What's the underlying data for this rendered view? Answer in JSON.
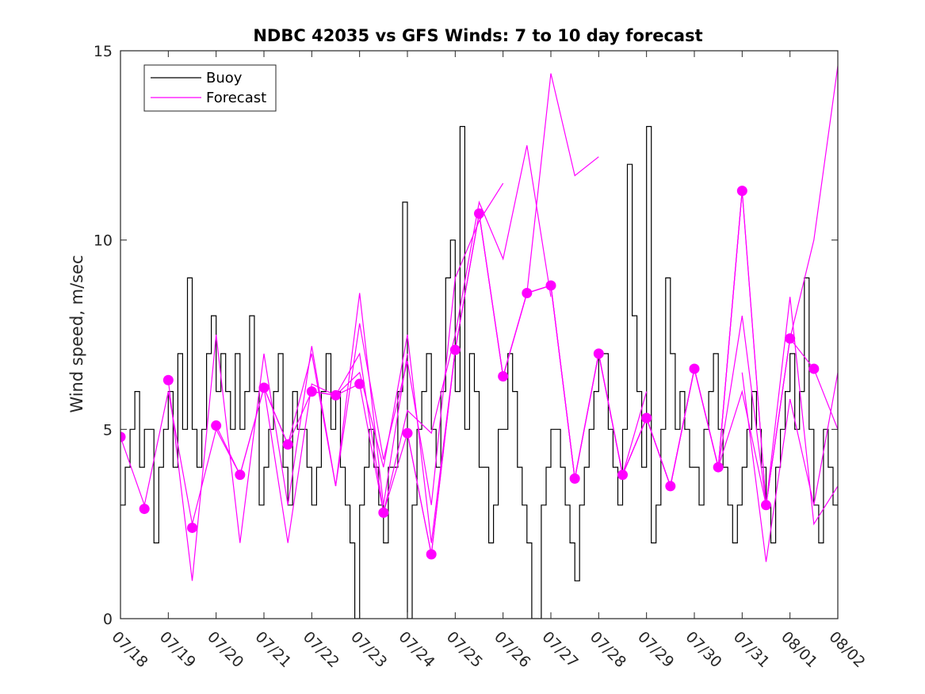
{
  "chart_data": {
    "type": "line",
    "title": "NDBC 42035 vs GFS Winds: 7 to 10 day forecast",
    "xlabel": "",
    "ylabel": "Wind speed, m/sec",
    "ylim": [
      0,
      15
    ],
    "xlim": [
      "07/18",
      "08/02"
    ],
    "yticks": [
      "0",
      "5",
      "10",
      "15"
    ],
    "xticks": [
      "07/18",
      "07/19",
      "07/20",
      "07/21",
      "07/22",
      "07/23",
      "07/24",
      "07/25",
      "07/26",
      "07/27",
      "07/28",
      "07/29",
      "07/30",
      "07/31",
      "08/01",
      "08/02"
    ],
    "legend": {
      "position": "top-left",
      "entries": [
        "Buoy",
        "Forecast"
      ]
    },
    "grid": false,
    "colors": {
      "buoy": "#000000",
      "forecast": "#ff00ff"
    },
    "series": [
      {
        "name": "Buoy",
        "style": "stairs",
        "x": [
          0.0,
          0.1,
          0.2,
          0.3,
          0.4,
          0.5,
          0.6,
          0.7,
          0.8,
          0.9,
          1.0,
          1.1,
          1.2,
          1.3,
          1.4,
          1.5,
          1.6,
          1.7,
          1.8,
          1.9,
          2.0,
          2.1,
          2.2,
          2.3,
          2.4,
          2.5,
          2.6,
          2.7,
          2.8,
          2.9,
          3.0,
          3.1,
          3.2,
          3.3,
          3.4,
          3.5,
          3.6,
          3.7,
          3.8,
          3.9,
          4.0,
          4.1,
          4.2,
          4.3,
          4.4,
          4.5,
          4.6,
          4.7,
          4.8,
          4.9,
          5.0,
          5.1,
          5.2,
          5.3,
          5.4,
          5.5,
          5.6,
          5.7,
          5.8,
          5.9,
          6.0,
          6.1,
          6.2,
          6.3,
          6.4,
          6.5,
          6.6,
          6.7,
          6.8,
          6.9,
          7.0,
          7.1,
          7.2,
          7.3,
          7.4,
          7.5,
          7.6,
          7.7,
          7.8,
          7.9,
          8.0,
          8.1,
          8.2,
          8.3,
          8.4,
          8.5,
          8.6,
          8.7,
          8.8,
          8.9,
          9.0,
          9.1,
          9.2,
          9.3,
          9.4,
          9.5,
          9.6,
          9.7,
          9.8,
          9.9,
          10.0,
          10.1,
          10.2,
          10.3,
          10.4,
          10.5,
          10.6,
          10.7,
          10.8,
          10.9,
          11.0,
          11.1,
          11.2,
          11.3,
          11.4,
          11.5,
          11.6,
          11.7,
          11.8,
          11.9,
          12.0,
          12.1,
          12.2,
          12.3,
          12.4,
          12.5,
          12.6,
          12.7,
          12.8,
          12.9,
          13.0,
          13.1,
          13.2,
          13.3,
          13.4,
          13.5,
          13.6,
          13.7,
          13.8,
          13.9,
          14.0,
          14.1,
          14.2,
          14.3,
          14.4,
          14.5,
          14.6,
          14.7,
          14.8,
          14.9,
          15.0
        ],
        "values": [
          3,
          4,
          5,
          6,
          4,
          5,
          5,
          2,
          4,
          5,
          6,
          4,
          7,
          5,
          9,
          5,
          4,
          5,
          7,
          8,
          6,
          7,
          6,
          5,
          7,
          5,
          6,
          8,
          6,
          3,
          4,
          5,
          6,
          7,
          4,
          3,
          6,
          5,
          5,
          4,
          3,
          4,
          6,
          7,
          5,
          6,
          4,
          3,
          2,
          0,
          3,
          4,
          5,
          4,
          3,
          2,
          4,
          4,
          6,
          11,
          0,
          3,
          5,
          6,
          7,
          5,
          4,
          6,
          9,
          10,
          6,
          13,
          5,
          7,
          6,
          4,
          4,
          2,
          3,
          5,
          5,
          7,
          6,
          4,
          3,
          2,
          0,
          0,
          3,
          4,
          5,
          5,
          4,
          3,
          2,
          1,
          3,
          4,
          5,
          6,
          7,
          7,
          5,
          4,
          3,
          5,
          12,
          8,
          6,
          4,
          13,
          2,
          3,
          5,
          9,
          7,
          5,
          6,
          5,
          4,
          4,
          3,
          5,
          6,
          7,
          5,
          4,
          3,
          2,
          3,
          4,
          5,
          6,
          5,
          4,
          3,
          2,
          4,
          5,
          6,
          7,
          5,
          6,
          9,
          5,
          3,
          2,
          5,
          4,
          3,
          3
        ]
      },
      {
        "name": "Forecast",
        "style": "multi-line",
        "runs": [
          {
            "x": [
              0.0,
              0.5,
              1.0,
              1.5,
              2.0,
              2.5,
              3.0,
              3.5,
              4.0,
              4.5,
              5.0
            ],
            "values": [
              4.8,
              3.0,
              6.0,
              2.5,
              5.0,
              3.8,
              6.1,
              4.6,
              6.0,
              5.9,
              6.2
            ]
          },
          {
            "x": [
              1.0,
              1.5,
              2.0,
              2.5,
              3.0,
              3.5,
              4.0,
              4.5,
              5.0,
              5.5,
              6.0
            ],
            "values": [
              6.3,
              1.0,
              7.5,
              2.0,
              7.0,
              3.0,
              7.2,
              3.5,
              8.6,
              3.0,
              7.0
            ]
          },
          {
            "x": [
              2.0,
              2.5,
              3.0,
              3.5,
              4.0,
              4.5,
              5.0,
              5.5,
              6.0,
              6.5,
              7.0
            ],
            "values": [
              5.1,
              3.8,
              6.1,
              2.0,
              6.2,
              5.9,
              6.5,
              4.0,
              7.5,
              2.0,
              7.1
            ]
          },
          {
            "x": [
              3.0,
              3.5,
              4.0,
              4.5,
              5.0,
              5.5,
              6.0,
              6.5,
              7.0,
              7.5,
              8.0
            ],
            "values": [
              6.1,
              4.6,
              7.0,
              3.5,
              7.8,
              4.2,
              6.8,
              3.0,
              9.0,
              10.5,
              11.5
            ]
          },
          {
            "x": [
              4.0,
              4.5,
              5.0,
              5.5,
              6.0,
              6.5,
              7.0,
              7.5,
              8.0,
              8.5,
              9.0
            ],
            "values": [
              6.0,
              5.9,
              7.0,
              2.8,
              5.5,
              4.9,
              7.5,
              11.0,
              9.5,
              12.5,
              8.5
            ]
          },
          {
            "x": [
              5.0,
              5.5,
              6.0,
              6.5,
              7.0,
              7.5,
              8.0,
              8.5,
              9.0,
              9.5,
              10.0
            ],
            "values": [
              6.2,
              2.8,
              4.9,
              1.7,
              7.1,
              10.7,
              6.4,
              8.6,
              14.4,
              11.7,
              12.2
            ]
          },
          {
            "x": [
              6.0,
              6.5,
              7.0,
              7.5,
              8.0,
              8.5,
              9.0,
              9.5,
              10.0,
              10.5,
              11.0
            ],
            "values": [
              4.9,
              1.7,
              7.1,
              10.7,
              6.4,
              8.6,
              8.8,
              3.7,
              7.0,
              3.8,
              6.0
            ]
          },
          {
            "x": [
              7.0,
              7.5,
              8.0,
              8.5,
              9.0,
              9.5,
              10.0,
              10.5,
              11.0,
              11.5,
              12.0
            ],
            "values": [
              7.1,
              10.7,
              6.4,
              8.6,
              8.8,
              3.7,
              7.0,
              3.8,
              5.3,
              3.5,
              6.6
            ]
          },
          {
            "x": [
              8.0,
              8.5,
              9.0,
              9.5,
              10.0,
              10.5,
              11.0,
              11.5,
              12.0,
              12.5,
              13.0
            ],
            "values": [
              6.4,
              8.6,
              8.8,
              3.7,
              7.0,
              3.8,
              5.3,
              3.5,
              6.6,
              4.0,
              11.3
            ]
          },
          {
            "x": [
              9.0,
              9.5,
              10.0,
              10.5,
              11.0,
              11.5,
              12.0,
              12.5,
              13.0,
              13.5,
              14.0
            ],
            "values": [
              8.8,
              3.7,
              7.0,
              3.8,
              5.3,
              3.5,
              6.6,
              4.0,
              11.3,
              3.0,
              7.4
            ]
          },
          {
            "x": [
              10.0,
              10.5,
              11.0,
              11.5,
              12.0,
              12.5,
              13.0,
              13.5,
              14.0,
              14.5,
              15.0
            ],
            "values": [
              7.0,
              3.8,
              5.3,
              3.5,
              6.6,
              4.0,
              11.3,
              3.0,
              7.4,
              10.0,
              14.6
            ]
          },
          {
            "x": [
              11.0,
              11.5,
              12.0,
              12.5,
              13.0,
              13.5,
              14.0,
              14.5,
              15.0
            ],
            "values": [
              5.3,
              3.5,
              6.6,
              4.0,
              8.0,
              3.0,
              7.4,
              6.6,
              5.0
            ]
          },
          {
            "x": [
              12.0,
              12.5,
              13.0,
              13.5,
              14.0,
              14.5,
              15.0
            ],
            "values": [
              6.6,
              4.0,
              6.0,
              3.0,
              8.5,
              2.5,
              3.5
            ]
          },
          {
            "x": [
              13.0,
              13.5,
              14.0,
              14.5,
              15.0
            ],
            "values": [
              6.5,
              1.5,
              5.8,
              3.0,
              6.5
            ]
          }
        ],
        "markers": {
          "x": [
            0.0,
            0.5,
            1.0,
            1.5,
            2.0,
            2.5,
            3.0,
            3.5,
            4.0,
            4.5,
            5.0,
            5.5,
            6.0,
            6.5,
            7.0,
            7.5,
            8.0,
            8.5,
            9.0,
            9.5,
            10.0,
            10.5,
            11.0,
            11.5,
            12.0,
            12.5,
            13.0,
            13.5,
            14.0,
            14.5
          ],
          "values": [
            4.8,
            2.9,
            6.3,
            2.4,
            5.1,
            3.8,
            6.1,
            4.6,
            6.0,
            5.9,
            6.2,
            2.8,
            4.9,
            1.7,
            7.1,
            10.7,
            6.4,
            8.6,
            8.8,
            3.7,
            7.0,
            3.8,
            5.3,
            3.5,
            6.6,
            4.0,
            11.3,
            3.0,
            7.4,
            6.6
          ]
        }
      }
    ]
  }
}
